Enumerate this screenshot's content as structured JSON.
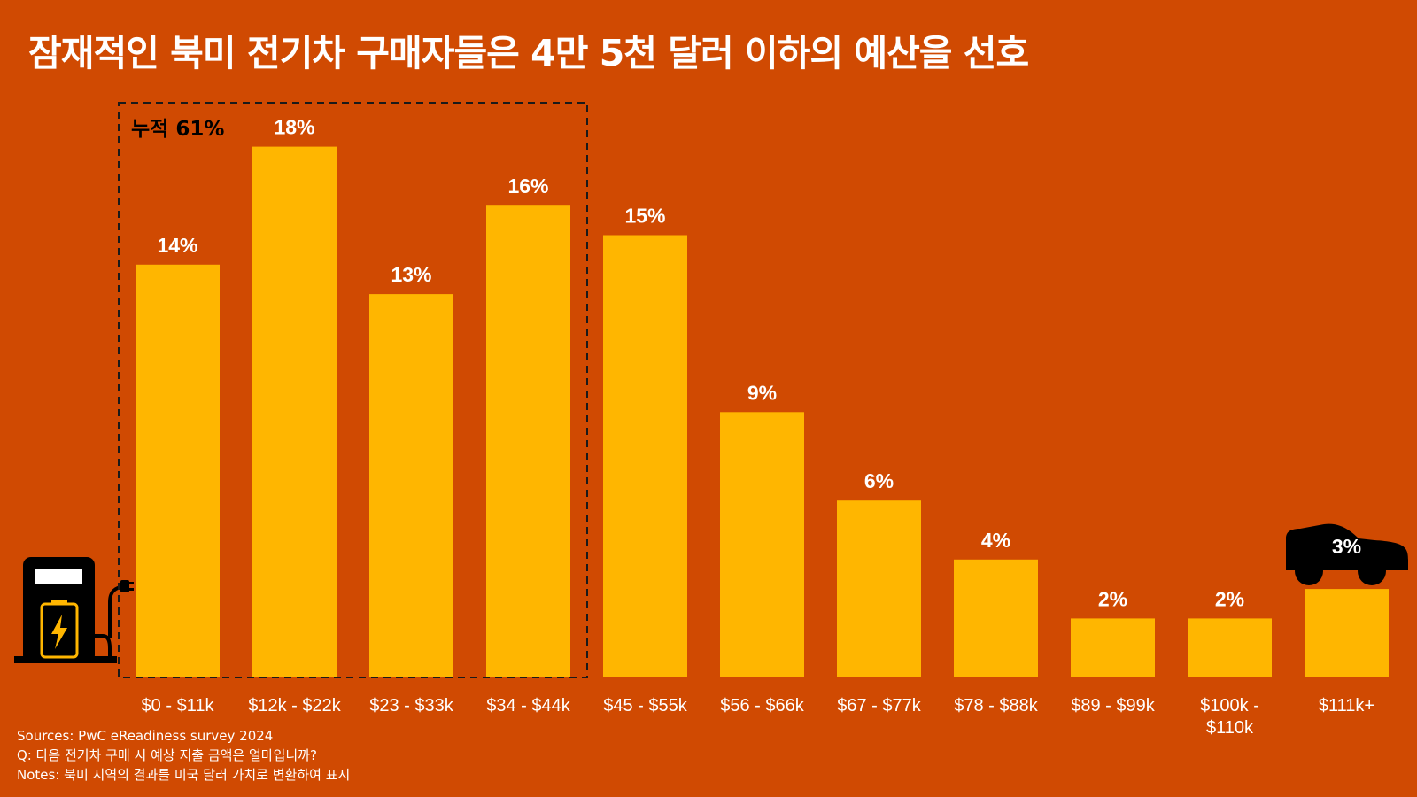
{
  "title": "잠재적인 북미 전기차 구매자들은 4만 5천 달러 이하의 예산을 선호",
  "cumulative_label": "누적 61%",
  "footnotes": {
    "sources": "Sources: PwC eReadiness survey 2024",
    "question": "Q: 다음 전기차 구매 시 예상 지출 금액은 얼마입니까?",
    "notes": "Notes: 북미 지역의 결과를 미국 달러 가치로 변환하여 표시"
  },
  "colors": {
    "background": "#D04A02",
    "bar": "#FFB600",
    "text": "#FFFFFF",
    "icon": "#000000"
  },
  "icons": [
    "ev-charger-icon",
    "car-icon"
  ],
  "chart_data": {
    "type": "bar",
    "title": "잠재적인 북미 전기차 구매자들은 4만 5천 달러 이하의 예산을 선호",
    "categories": [
      "$0 - $11k",
      "$12k - $22k",
      "$23 - $33k",
      "$34 - $44k",
      "$45 - $55k",
      "$56 - $66k",
      "$67 - $77k",
      "$78 - $88k",
      "$89 - $99k",
      [
        "$100k -",
        "$110k"
      ],
      "$111k+"
    ],
    "values": [
      14,
      18,
      13,
      16,
      15,
      9,
      6,
      4,
      2,
      2,
      3
    ],
    "data_labels": [
      "14%",
      "18%",
      "13%",
      "16%",
      "15%",
      "9%",
      "6%",
      "4%",
      "2%",
      "2%",
      "3%"
    ],
    "unit": "%",
    "xlabel": "",
    "ylabel": "",
    "grid": false,
    "highlight": {
      "first_index": 0,
      "last_index": 3,
      "label": "누적 61%"
    }
  }
}
